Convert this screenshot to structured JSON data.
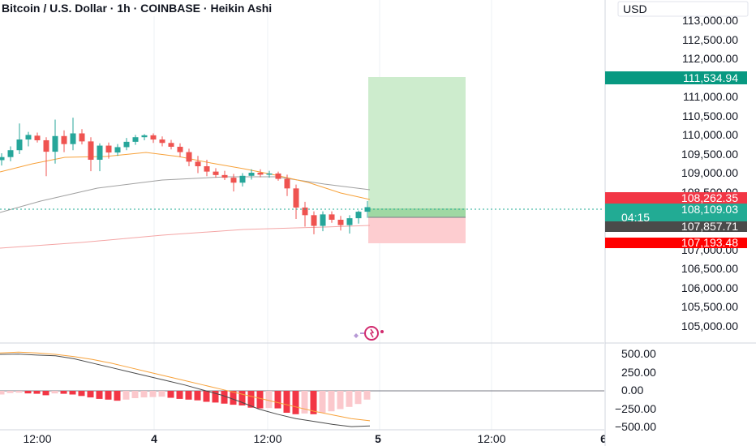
{
  "header": {
    "title": "Bitcoin / U.S. Dollar · 1h · COINBASE · Heikin Ashi"
  },
  "price_axis": {
    "unit": "USD",
    "labels": [
      "113,000.00",
      "112,500.00",
      "112,000.00",
      "111,000.00",
      "110,500.00",
      "110,000.00",
      "109,500.00",
      "109,000.00",
      "108,500.00",
      "107,000.00",
      "106,500.00",
      "106,000.00",
      "105,500.00",
      "105,000.00"
    ]
  },
  "tags": {
    "target": {
      "text": "111,534.94",
      "color": "#089981"
    },
    "upper": {
      "text": "108,262.35",
      "color": "#f23645"
    },
    "current": {
      "text": "108,109.03",
      "countdown": "04:15",
      "color": "#22ab94"
    },
    "entry": {
      "text": "107,857.71",
      "color": "#4a4a4a"
    },
    "stop": {
      "text": "107,193.48",
      "color": "#ff0000"
    }
  },
  "macd_axis": {
    "labels": [
      "500.00",
      "250.00",
      "0.00",
      "−250.00",
      "−500.00"
    ]
  },
  "time_axis": {
    "labels": [
      "12:00",
      "4",
      "12:00",
      "5",
      "12:00",
      "6"
    ]
  },
  "colors": {
    "up": "#26a69a",
    "down": "#ef5350",
    "ema_fast": "#f7a23b",
    "ema_slow": "#a0a0a0",
    "ema_long": "#f4a5a5",
    "profit_zone": "#cdeccd",
    "loss_zone": "#fdcdd0",
    "hist_neg_strong": "#f23645",
    "hist_neg_weak": "#fbc8cc",
    "brand_icon": "#d12a6e"
  },
  "chart_data": {
    "type": "candlestick",
    "title": "Bitcoin / U.S. Dollar · 1h · COINBASE · Heikin Ashi",
    "ylim": [
      104800,
      113200
    ],
    "candles": [
      {
        "o": 109340,
        "h": 109520,
        "l": 109200,
        "c": 109420
      },
      {
        "o": 109420,
        "h": 109700,
        "l": 109310,
        "c": 109600
      },
      {
        "o": 109600,
        "h": 110300,
        "l": 109500,
        "c": 109880
      },
      {
        "o": 109880,
        "h": 110080,
        "l": 109700,
        "c": 110000
      },
      {
        "o": 109980,
        "h": 110060,
        "l": 109800,
        "c": 109860
      },
      {
        "o": 109860,
        "h": 109940,
        "l": 108920,
        "c": 109560
      },
      {
        "o": 109560,
        "h": 110400,
        "l": 109250,
        "c": 109970
      },
      {
        "o": 109970,
        "h": 110120,
        "l": 109550,
        "c": 109760
      },
      {
        "o": 109760,
        "h": 110450,
        "l": 109600,
        "c": 110040
      },
      {
        "o": 110040,
        "h": 110150,
        "l": 109750,
        "c": 109830
      },
      {
        "o": 109830,
        "h": 109940,
        "l": 109050,
        "c": 109350
      },
      {
        "o": 109350,
        "h": 109780,
        "l": 109050,
        "c": 109720
      },
      {
        "o": 109720,
        "h": 109800,
        "l": 109380,
        "c": 109540
      },
      {
        "o": 109540,
        "h": 109760,
        "l": 109450,
        "c": 109680
      },
      {
        "o": 109680,
        "h": 109920,
        "l": 109600,
        "c": 109820
      },
      {
        "o": 109820,
        "h": 110000,
        "l": 109740,
        "c": 109940
      },
      {
        "o": 109940,
        "h": 110020,
        "l": 109860,
        "c": 109990
      },
      {
        "o": 109990,
        "h": 110040,
        "l": 109790,
        "c": 109880
      },
      {
        "o": 109880,
        "h": 109960,
        "l": 109700,
        "c": 109790
      },
      {
        "o": 109790,
        "h": 109870,
        "l": 109620,
        "c": 109690
      },
      {
        "o": 109690,
        "h": 109780,
        "l": 109420,
        "c": 109550
      },
      {
        "o": 109550,
        "h": 109640,
        "l": 109180,
        "c": 109300
      },
      {
        "o": 109300,
        "h": 109450,
        "l": 109000,
        "c": 109180
      },
      {
        "o": 109180,
        "h": 109350,
        "l": 108920,
        "c": 109040
      },
      {
        "o": 109040,
        "h": 109130,
        "l": 108880,
        "c": 108950
      },
      {
        "o": 108950,
        "h": 109060,
        "l": 108820,
        "c": 108880
      },
      {
        "o": 108880,
        "h": 108980,
        "l": 108520,
        "c": 108750
      },
      {
        "o": 108750,
        "h": 109000,
        "l": 108650,
        "c": 108930
      },
      {
        "o": 108930,
        "h": 109100,
        "l": 108830,
        "c": 109010
      },
      {
        "o": 109010,
        "h": 109100,
        "l": 108890,
        "c": 108960
      },
      {
        "o": 108960,
        "h": 109060,
        "l": 108880,
        "c": 108990
      },
      {
        "o": 108990,
        "h": 109040,
        "l": 108800,
        "c": 108850
      },
      {
        "o": 108850,
        "h": 108960,
        "l": 108400,
        "c": 108600
      },
      {
        "o": 108600,
        "h": 108700,
        "l": 107800,
        "c": 108100
      },
      {
        "o": 108100,
        "h": 108250,
        "l": 107600,
        "c": 107900
      },
      {
        "o": 107900,
        "h": 108000,
        "l": 107400,
        "c": 107620
      },
      {
        "o": 107620,
        "h": 108000,
        "l": 107480,
        "c": 107920
      },
      {
        "o": 107920,
        "h": 108000,
        "l": 107700,
        "c": 107780
      },
      {
        "o": 107780,
        "h": 107880,
        "l": 107500,
        "c": 107640
      },
      {
        "o": 107640,
        "h": 107900,
        "l": 107420,
        "c": 107820
      },
      {
        "o": 107820,
        "h": 108020,
        "l": 107680,
        "c": 107990
      },
      {
        "o": 107990,
        "h": 108270,
        "l": 107830,
        "c": 108109
      }
    ],
    "position": {
      "target": 111534.94,
      "entry": 107857.71,
      "stop": 107193.48
    },
    "macd": {
      "ylim": [
        -550,
        560
      ],
      "histogram": [
        -50,
        -30,
        -25,
        -35,
        -40,
        -60,
        -35,
        -40,
        -50,
        -70,
        -90,
        -110,
        -120,
        -135,
        -120,
        -100,
        -90,
        -85,
        -80,
        -95,
        -110,
        -120,
        -130,
        -150,
        -160,
        -175,
        -190,
        -200,
        -230,
        -240,
        -235,
        -240,
        -300,
        -320,
        -310,
        -320,
        -300,
        -280,
        -250,
        -220,
        -180,
        -120
      ],
      "macd_line": [
        500,
        505,
        490,
        480,
        440,
        380,
        320,
        260,
        200,
        140,
        80,
        10,
        -60,
        -150,
        -250,
        -320,
        -380,
        -420,
        -460,
        -490,
        -480
      ],
      "signal_line": [
        520,
        530,
        520,
        500,
        470,
        430,
        380,
        320,
        260,
        200,
        140,
        80,
        20,
        -40,
        -100,
        -160,
        -220,
        -280,
        -330,
        -380,
        -410
      ]
    }
  }
}
